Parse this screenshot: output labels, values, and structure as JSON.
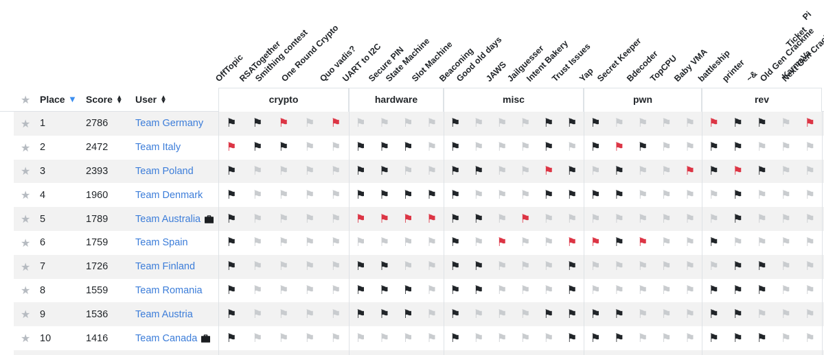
{
  "header": {
    "star_icon": "★",
    "place": "Place",
    "score": "Score",
    "user": "User",
    "sort_icons": {
      "place_desc": "▼",
      "up": "▲",
      "down": "▼"
    }
  },
  "categories": [
    {
      "name": "crypto",
      "challenges": [
        "OffTopic",
        "RSATogether",
        "Smithing contest",
        "One Round Crypto",
        "Quo vadis?"
      ]
    },
    {
      "name": "hardware",
      "challenges": [
        "UART to I2C",
        "Secure PIN",
        "State Machine",
        "Slot Machine"
      ]
    },
    {
      "name": "misc",
      "challenges": [
        "Beaconing",
        "Good old days",
        "JAWS",
        "Jailguesser",
        "Intent Bakery",
        "Trust Issues"
      ]
    },
    {
      "name": "pwn",
      "challenges": [
        "Yap",
        "Secret Keeper",
        "Bdecoder",
        "TopCPU",
        "Baby VMA"
      ]
    },
    {
      "name": "rev",
      "challenges": [
        "battleship",
        "printer",
        "~&",
        "Old Gen Crackme",
        "Next Gen Crackme"
      ]
    }
  ],
  "clipped_challenge_labels": [
    "KarmaVa",
    "Ticket",
    "Pi"
  ],
  "flag_icon": "⚑",
  "flag_states": {
    "b": "solved",
    "r": "first_blood",
    "-": "unsolved"
  },
  "colors": {
    "solved": "#212529",
    "first_blood": "#dc3545",
    "unsolved": "#c9cccf",
    "link": "#3c7dd9",
    "sort_active": "#3b8ef0",
    "stripe": "#f2f2f2",
    "border": "#dee2e6",
    "star": "#b6bbc1"
  },
  "rows": [
    {
      "place": "1",
      "score": "2786",
      "user": "Team Germany",
      "briefcase": false,
      "flags": [
        "bbr-r",
        "----",
        "b---bb",
        "b----",
        "rbb-r"
      ]
    },
    {
      "place": "2",
      "score": "2472",
      "user": "Team Italy",
      "briefcase": false,
      "flags": [
        "rbb--",
        "bbb-",
        "b---b-",
        "brb--",
        "bb---"
      ]
    },
    {
      "place": "3",
      "score": "2393",
      "user": "Team Poland",
      "briefcase": false,
      "flags": [
        "b----",
        "bb--",
        "bb--rb",
        "-b--r",
        "brb--"
      ]
    },
    {
      "place": "4",
      "score": "1960",
      "user": "Team Denmark",
      "briefcase": false,
      "flags": [
        "b----",
        "bbbb",
        "b---bb",
        "bb---",
        "-b---"
      ]
    },
    {
      "place": "5",
      "score": "1789",
      "user": "Team Australia",
      "briefcase": true,
      "flags": [
        "b----",
        "rrrr",
        "bb-r--",
        "-----",
        "-b---"
      ]
    },
    {
      "place": "6",
      "score": "1759",
      "user": "Team Spain",
      "briefcase": false,
      "flags": [
        "b----",
        "----",
        "b-r--r",
        "rbr--",
        "b----"
      ]
    },
    {
      "place": "7",
      "score": "1726",
      "user": "Team Finland",
      "briefcase": false,
      "flags": [
        "b----",
        "bb--",
        "bb---b",
        "-----",
        "-bb--"
      ]
    },
    {
      "place": "8",
      "score": "1559",
      "user": "Team Romania",
      "briefcase": false,
      "flags": [
        "b----",
        "bbb-",
        "bb---b",
        "-----",
        "bbb--"
      ]
    },
    {
      "place": "9",
      "score": "1536",
      "user": "Team Austria",
      "briefcase": false,
      "flags": [
        "b----",
        "bbb-",
        "b---bb",
        "bb---",
        "bb---"
      ]
    },
    {
      "place": "10",
      "score": "1416",
      "user": "Team Canada",
      "briefcase": true,
      "flags": [
        "b----",
        "----",
        "b----b",
        "bb---",
        "bbb--"
      ]
    }
  ]
}
